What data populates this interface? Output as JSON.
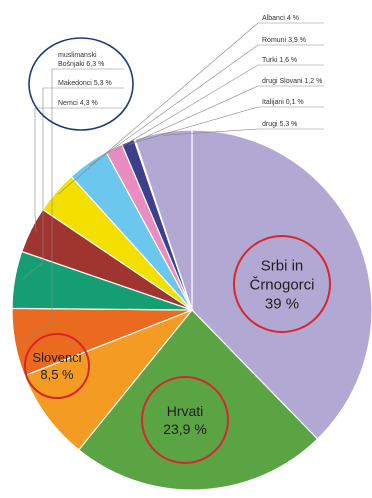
{
  "chart_data": {
    "type": "pie",
    "title": "",
    "slices": [
      {
        "key": "srbi",
        "label_lines": [
          "Srbi in",
          "Črnogorci",
          "39 %"
        ],
        "value": 39.0,
        "color": "#b1a8d4"
      },
      {
        "key": "hrvati",
        "label_lines": [
          "Hrvati",
          "23,9 %"
        ],
        "value": 23.9,
        "color": "#5aa444"
      },
      {
        "key": "slovenci",
        "label_lines": [
          "Slovenci",
          "8,5 %"
        ],
        "value": 8.5,
        "color": "#f39b22"
      },
      {
        "key": "muslimanski",
        "label_lines": [
          "muslimanski",
          "Bošnjaki 6,3 %"
        ],
        "value": 6.3,
        "color": "#ea6a20"
      },
      {
        "key": "makedonci",
        "label_lines": [
          "Makedonci 5,3 %"
        ],
        "value": 5.3,
        "color": "#159e71"
      },
      {
        "key": "nemci",
        "label_lines": [
          "Nemci 4,3 %"
        ],
        "value": 4.3,
        "color": "#a0342f"
      },
      {
        "key": "albanci",
        "label_lines": [
          "Albanci 4 %"
        ],
        "value": 4.0,
        "color": "#f4e000"
      },
      {
        "key": "romuni",
        "label_lines": [
          "Romuni 3,9 %"
        ],
        "value": 3.9,
        "color": "#6cc7ee"
      },
      {
        "key": "turki",
        "label_lines": [
          "Turki 1,6 %"
        ],
        "value": 1.6,
        "color": "#e98cc0"
      },
      {
        "key": "drugi_slovani",
        "label_lines": [
          "drugi Slovani 1,2 %"
        ],
        "value": 1.2,
        "color": "#3b3f8c"
      },
      {
        "key": "italijani",
        "label_lines": [
          "Italijani 0,1 %"
        ],
        "value": 0.1,
        "color": "#d7d7d7"
      },
      {
        "key": "drugi",
        "label_lines": [
          "drugi 5,3 %"
        ],
        "value": 5.3,
        "color": "#b1a8d4"
      }
    ],
    "highlight_color": "#d9252b",
    "callout_color": "#1a3c7a"
  }
}
